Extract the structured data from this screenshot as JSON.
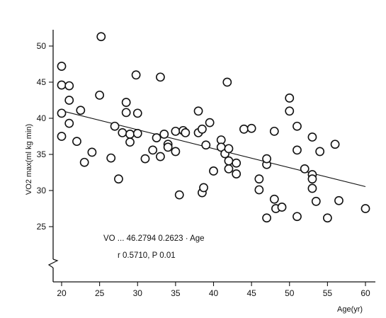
{
  "chart_data": {
    "type": "scatter",
    "title": "",
    "xlabel": "Age(yr)",
    "ylabel": "VO2 max(ml kg min)",
    "xlim": [
      19,
      61
    ],
    "ylim": [
      22,
      51
    ],
    "x_ticks": [
      20,
      25,
      30,
      35,
      40,
      45,
      50,
      55,
      60
    ],
    "y_ticks": [
      25,
      30,
      35,
      40,
      45,
      50
    ],
    "grid": false,
    "axis_break": "y",
    "series": [
      {
        "points": [
          [
            20,
            47.2
          ],
          [
            20,
            44.6
          ],
          [
            20,
            40.7
          ],
          [
            20,
            37.5
          ],
          [
            21,
            44.5
          ],
          [
            21,
            42.5
          ],
          [
            21,
            39.3
          ],
          [
            22,
            36.8
          ],
          [
            22.5,
            41.1
          ],
          [
            23,
            33.9
          ],
          [
            24,
            35.3
          ],
          [
            25,
            43.2
          ],
          [
            25.2,
            51.3
          ],
          [
            26.5,
            34.5
          ],
          [
            27,
            38.9
          ],
          [
            27.5,
            31.6
          ],
          [
            28,
            38.0
          ],
          [
            28.5,
            42.2
          ],
          [
            28.5,
            40.8
          ],
          [
            29,
            37.8
          ],
          [
            29,
            36.7
          ],
          [
            29.8,
            46.0
          ],
          [
            30,
            40.7
          ],
          [
            30,
            37.9
          ],
          [
            31,
            34.4
          ],
          [
            32,
            35.6
          ],
          [
            32.5,
            37.3
          ],
          [
            33,
            45.7
          ],
          [
            33,
            34.7
          ],
          [
            33.5,
            37.8
          ],
          [
            34,
            36.4
          ],
          [
            34,
            36.0
          ],
          [
            35,
            38.2
          ],
          [
            35,
            35.4
          ],
          [
            35.5,
            29.4
          ],
          [
            36,
            38.3
          ],
          [
            36.3,
            38.0
          ],
          [
            38,
            41.0
          ],
          [
            38,
            38.0
          ],
          [
            38.5,
            38.5
          ],
          [
            38.5,
            29.7
          ],
          [
            38.7,
            30.4
          ],
          [
            39,
            36.3
          ],
          [
            39.5,
            39.4
          ],
          [
            40,
            32.7
          ],
          [
            41,
            37.0
          ],
          [
            41,
            36.0
          ],
          [
            41.5,
            35.1
          ],
          [
            41.8,
            45.0
          ],
          [
            42,
            35.8
          ],
          [
            42,
            34.1
          ],
          [
            42,
            33.0
          ],
          [
            43,
            33.8
          ],
          [
            43,
            32.3
          ],
          [
            44,
            38.5
          ],
          [
            45,
            38.6
          ],
          [
            46,
            31.6
          ],
          [
            46,
            30.1
          ],
          [
            47,
            33.6
          ],
          [
            47,
            34.4
          ],
          [
            47,
            26.2
          ],
          [
            48,
            38.2
          ],
          [
            48,
            28.8
          ],
          [
            48.2,
            27.5
          ],
          [
            49,
            27.7
          ],
          [
            50,
            42.8
          ],
          [
            50,
            41.0
          ],
          [
            51,
            38.9
          ],
          [
            51,
            35.6
          ],
          [
            51,
            26.4
          ],
          [
            52,
            33.0
          ],
          [
            53,
            37.4
          ],
          [
            53,
            32.2
          ],
          [
            53,
            31.6
          ],
          [
            53,
            30.3
          ],
          [
            53.5,
            28.5
          ],
          [
            54,
            35.4
          ],
          [
            55,
            26.2
          ],
          [
            56,
            36.4
          ],
          [
            56.5,
            28.6
          ],
          [
            60,
            27.5
          ]
        ]
      }
    ],
    "regression": {
      "intercept": 46.2794,
      "slope": -0.2623,
      "x_range": [
        20,
        60
      ]
    },
    "annotations": [
      "VO ... 46.2794  0.2623 · Age",
      "r   0.5710, P  0.01"
    ]
  }
}
